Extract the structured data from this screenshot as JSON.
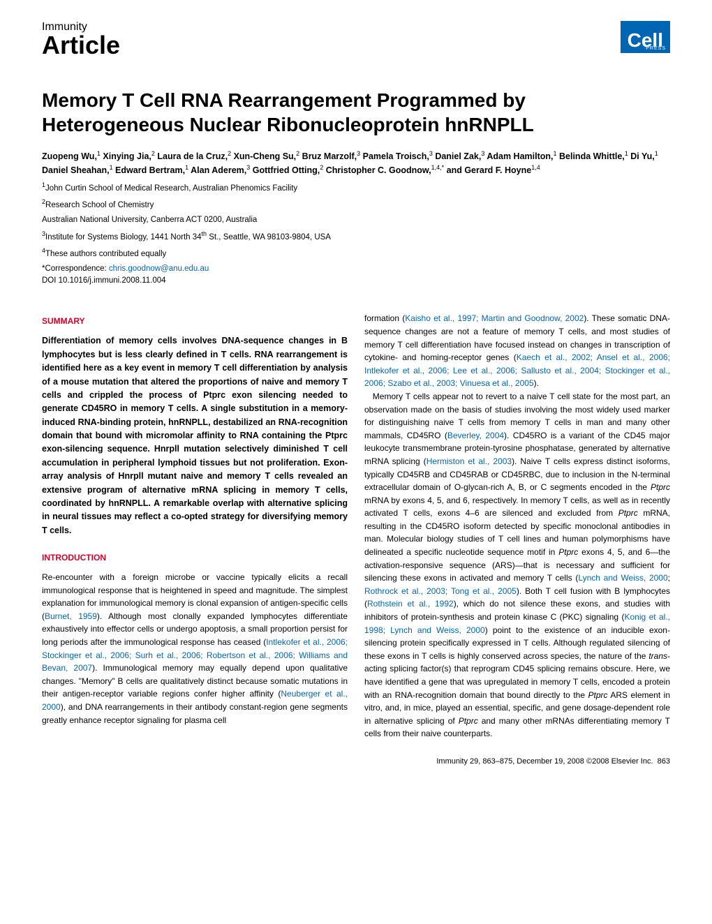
{
  "header": {
    "journal": "Immunity",
    "article_type": "Article",
    "logo_text": "Cell",
    "logo_sub": "PRESS",
    "logo_bg": "#0066b3",
    "logo_fg": "#ffffff"
  },
  "title": "Memory T Cell RNA Rearrangement Programmed by Heterogeneous Nuclear Ribonucleoprotein hnRNPLL",
  "authors_html": "Zuopeng Wu,<sup>1</sup> Xinying Jia,<sup>2</sup> Laura de la Cruz,<sup>2</sup> Xun-Cheng Su,<sup>2</sup> Bruz Marzolf,<sup>3</sup> Pamela Troisch,<sup>3</sup> Daniel Zak,<sup>3</sup> Adam Hamilton,<sup>1</sup> Belinda Whittle,<sup>1</sup> Di Yu,<sup>1</sup> Daniel Sheahan,<sup>1</sup> Edward Bertram,<sup>1</sup> Alan Aderem,<sup>3</sup> Gottfried Otting,<sup>2</sup> Christopher C. Goodnow,<sup>1,4,*</sup> and Gerard F. Hoyne<sup>1,4</sup>",
  "affiliations": [
    "<sup>1</sup>John Curtin School of Medical Research, Australian Phenomics Facility",
    "<sup>2</sup>Research School of Chemistry",
    "Australian National University, Canberra ACT 0200, Australia",
    "<sup>3</sup>Institute for Systems Biology, 1441 North 34<sup>th</sup> St., Seattle, WA 98103-9804, USA",
    "<sup>4</sup>These authors contributed equally"
  ],
  "correspondence_label": "*Correspondence: ",
  "correspondence_email": "chris.goodnow@anu.edu.au",
  "doi": "DOI 10.1016/j.immuni.2008.11.004",
  "section_headings": {
    "summary": "SUMMARY",
    "introduction": "INTRODUCTION"
  },
  "summary_text": "Differentiation of memory cells involves DNA-sequence changes in B lymphocytes but is less clearly defined in T cells. RNA rearrangement is identified here as a key event in memory T cell differentiation by analysis of a mouse mutation that altered the proportions of naive and memory T cells and crippled the process of Ptprc exon silencing needed to generate CD45RO in memory T cells. A single substitution in a memory-induced RNA-binding protein, hnRNPLL, destabilized an RNA-recognition domain that bound with micromolar affinity to RNA containing the Ptprc exon-silencing sequence. Hnrpll mutation selectively diminished T cell accumulation in peripheral lymphoid tissues but not proliferation. Exon-array analysis of Hnrpll mutant naive and memory T cells revealed an extensive program of alternative mRNA splicing in memory T cells, coordinated by hnRNPLL. A remarkable overlap with alternative splicing in neural tissues may reflect a co-opted strategy for diversifying memory T cells.",
  "intro_col1": "Re-encounter with a foreign microbe or vaccine typically elicits a recall immunological response that is heightened in speed and magnitude. The simplest explanation for immunological memory is clonal expansion of antigen-specific cells (<span class='ref'>Burnet, 1959</span>). Although most clonally expanded lymphocytes differentiate exhaustively into effector cells or undergo apoptosis, a small proportion persist for long periods after the immunological response has ceased (<span class='ref'>Intlekofer et al., 2006; Stockinger et al., 2006; Surh et al., 2006; Robertson et al., 2006; Williams and Bevan, 2007</span>). Immunological memory may equally depend upon qualitative changes. \"Memory\" B cells are qualitatively distinct because somatic mutations in their antigen-receptor variable regions confer higher affinity (<span class='ref'>Neuberger et al., 2000</span>), and DNA rearrangements in their antibody constant-region gene segments greatly enhance receptor signaling for plasma cell",
  "col2_text": "formation (<span class='ref'>Kaisho et al., 1997; Martin and Goodnow, 2002</span>). These somatic DNA-sequence changes are not a feature of memory T cells, and most studies of memory T cell differentiation have focused instead on changes in transcription of cytokine- and homing-receptor genes (<span class='ref'>Kaech et al., 2002; Ansel et al., 2006; Intlekofer et al., 2006; Lee et al., 2006; Sallusto et al., 2004; Stockinger et al., 2006; Szabo et al., 2003; Vinuesa et al., 2005</span>).<br>&nbsp;&nbsp;&nbsp;Memory T cells appear not to revert to a naive T cell state for the most part, an observation made on the basis of studies involving the most widely used marker for distinguishing naive T cells from memory T cells in man and many other mammals, CD45RO (<span class='ref'>Beverley, 2004</span>). CD45RO is a variant of the CD45 major leukocyte transmembrane protein-tyrosine phosphatase, generated by alternative mRNA splicing (<span class='ref'>Hermiston et al., 2003</span>). Naive T cells express distinct isoforms, typically CD45RB and CD45RAB or CD45RBC, due to inclusion in the N-terminal extracellular domain of O-glycan-rich A, B, or C segments encoded in the <i>Ptprc</i> mRNA by exons 4, 5, and 6, respectively. In memory T cells, as well as in recently activated T cells, exons 4–6 are silenced and excluded from <i>Ptprc</i> mRNA, resulting in the CD45RO isoform detected by specific monoclonal antibodies in man. Molecular biology studies of T cell lines and human polymorphisms have delineated a specific nucleotide sequence motif in <i>Ptprc</i> exons 4, 5, and 6—the activation-responsive sequence (ARS)—that is necessary and sufficient for silencing these exons in activated and memory T cells (<span class='ref'>Lynch and Weiss, 2000</span>; <span class='ref'>Rothrock et al., 2003; Tong et al., 2005</span>). Both T cell fusion with B lymphocytes (<span class='ref'>Rothstein et al., 1992</span>), which do not silence these exons, and studies with inhibitors of protein-synthesis and protein kinase C (PKC) signaling (<span class='ref'>Konig et al., 1998; Lynch and Weiss, 2000</span>) point to the existence of an inducible exon-silencing protein specifically expressed in T cells. Although regulated silencing of these exons in T cells is highly conserved across species, the nature of the <i>trans</i>-acting splicing factor(s) that reprogram CD45 splicing remains obscure. Here, we have identified a gene that was upregulated in memory T cells, encoded a protein with an RNA-recognition domain that bound directly to the <i>Ptprc</i> ARS element in vitro, and, in mice, played an essential, specific, and gene dosage-dependent role in alternative splicing of <i>Ptprc</i> and many other mRNAs differentiating memory T cells from their naive counterparts.",
  "footer": {
    "citation": "Immunity 29, 863–875, December 19, 2008 ©2008 Elsevier Inc.",
    "page": "863"
  },
  "colors": {
    "heading_red": "#d4002a",
    "link_blue": "#0066b3",
    "text": "#000000",
    "bg": "#ffffff"
  },
  "fonts": {
    "body_family": "Arial, Helvetica, sans-serif",
    "title_size_pt": 21,
    "body_size_pt": 9,
    "summary_size_pt": 9.5
  }
}
